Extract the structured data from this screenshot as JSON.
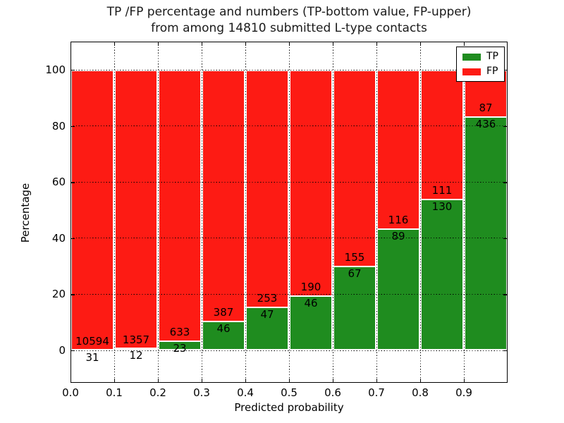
{
  "title": {
    "line1": "TP /FP percentage and numbers (TP-bottom value, FP-upper)",
    "line2": "from among 14810 submitted L-type contacts"
  },
  "axes": {
    "xlabel": "Predicted probability",
    "ylabel": "Percentage",
    "x_ticks": [
      "0.0",
      "0.1",
      "0.2",
      "0.3",
      "0.4",
      "0.5",
      "0.6",
      "0.7",
      "0.8",
      "0.9"
    ],
    "y_ticks": [
      "0",
      "20",
      "40",
      "60",
      "80",
      "100"
    ]
  },
  "legend": [
    {
      "label": "TP",
      "color": "#1f8c1f"
    },
    {
      "label": "FP",
      "color": "#fd1b14"
    }
  ],
  "colors": {
    "tp_green": "#1f8c1f",
    "fp_red": "#fd1b14",
    "grid": "#000000",
    "background": "#ffffff"
  },
  "chart_data": {
    "type": "bar",
    "stacked": true,
    "normalized_to_100_percent": true,
    "title": "TP /FP percentage and numbers (TP-bottom value, FP-upper) from among 14810 submitted L-type contacts",
    "xlabel": "Predicted probability",
    "ylabel": "Percentage",
    "total_submitted_contacts": 14810,
    "bin_edges": [
      0.0,
      0.1,
      0.2,
      0.3,
      0.4,
      0.5,
      0.6,
      0.7,
      0.8,
      0.9,
      1.0
    ],
    "x_tick_labels": [
      "0.0",
      "0.1",
      "0.2",
      "0.3",
      "0.4",
      "0.5",
      "0.6",
      "0.7",
      "0.8",
      "0.9"
    ],
    "y_tick_values": [
      0,
      20,
      40,
      60,
      80,
      100
    ],
    "xlim": [
      0.0,
      1.0
    ],
    "ylim": [
      -11.6,
      109.8
    ],
    "grid": "dotted black on both axes",
    "legend_position": "upper right",
    "series": [
      {
        "name": "TP",
        "color": "#1f8c1f",
        "counts": [
          31,
          12,
          23,
          46,
          47,
          46,
          67,
          89,
          130,
          436
        ],
        "pct": [
          0.29,
          0.88,
          3.51,
          10.62,
          15.67,
          19.49,
          30.18,
          43.41,
          53.94,
          83.37
        ]
      },
      {
        "name": "FP",
        "color": "#fd1b14",
        "counts": [
          10594,
          1357,
          633,
          387,
          253,
          190,
          155,
          116,
          111,
          87
        ],
        "pct": [
          99.71,
          99.12,
          96.49,
          89.38,
          84.33,
          80.51,
          69.82,
          56.59,
          46.06,
          16.63
        ]
      }
    ]
  }
}
